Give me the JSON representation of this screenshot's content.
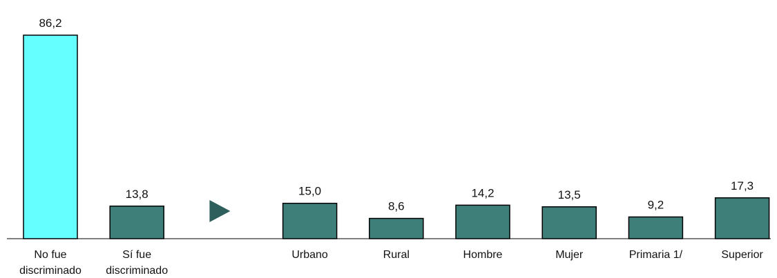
{
  "chart_data": {
    "type": "bar",
    "categories": [
      "No fue discriminado",
      "Sí fue discriminado",
      "",
      "Urbano",
      "Rural",
      "Hombre",
      "Mujer",
      "Primaria 1/",
      "Superior"
    ],
    "category_lines": [
      [
        "No fue",
        "discriminado"
      ],
      [
        "Sí fue",
        "discriminado"
      ],
      [],
      [
        "Urbano"
      ],
      [
        "Rural"
      ],
      [
        "Hombre"
      ],
      [
        "Mujer"
      ],
      [
        "Primaria 1/"
      ],
      [
        "Superior"
      ]
    ],
    "values": [
      86.2,
      13.8,
      null,
      15.0,
      8.6,
      14.2,
      13.5,
      9.2,
      17.3
    ],
    "value_labels": [
      "86,2",
      "13,8",
      "",
      "15,0",
      "8,6",
      "14,2",
      "13,5",
      "9,2",
      "17,3"
    ],
    "bar_colors": [
      "#66ffff",
      "#3f7f7a",
      null,
      "#3f7f7a",
      "#3f7f7a",
      "#3f7f7a",
      "#3f7f7a",
      "#3f7f7a",
      "#3f7f7a"
    ],
    "separator_marker": "right-triangle",
    "marker_color": "#2f5f5c",
    "ylim": [
      0,
      100
    ],
    "grid": false,
    "title": "",
    "xlabel": "",
    "ylabel": ""
  }
}
